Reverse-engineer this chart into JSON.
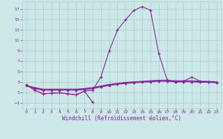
{
  "xlabel": "Windchill (Refroidissement éolien,°C)",
  "bg_color": "#cce8e8",
  "grid_color": "#aacccc",
  "line_color": "#882299",
  "xlim": [
    -0.5,
    23.5
  ],
  "ylim": [
    -2.0,
    18.5
  ],
  "xticks": [
    0,
    1,
    2,
    3,
    4,
    5,
    6,
    7,
    8,
    9,
    10,
    11,
    12,
    13,
    14,
    15,
    16,
    17,
    18,
    19,
    20,
    21,
    22,
    23
  ],
  "yticks": [
    -1,
    1,
    3,
    5,
    7,
    9,
    11,
    13,
    15,
    17
  ],
  "curve_main_x": [
    0,
    1,
    2,
    3,
    4,
    5,
    6,
    7,
    8,
    9,
    10,
    11,
    12,
    13,
    14,
    15,
    16,
    17,
    18,
    19,
    20,
    21,
    22,
    23
  ],
  "curve_main_y": [
    2.5,
    1.5,
    0.8,
    0.9,
    1.0,
    0.8,
    0.6,
    1.3,
    1.5,
    4.0,
    9.0,
    13.0,
    15.0,
    16.8,
    17.5,
    16.8,
    8.5,
    3.5,
    3.0,
    3.2,
    4.0,
    3.2,
    3.0,
    3.0
  ],
  "curve_dip_x": [
    0,
    1,
    2,
    3,
    4,
    5,
    6,
    7,
    8
  ],
  "curve_dip_y": [
    2.5,
    1.5,
    0.8,
    0.9,
    1.0,
    0.8,
    0.6,
    1.3,
    -0.8
  ],
  "curve_flat1_x": [
    0,
    1,
    2,
    3,
    4,
    5,
    6,
    7,
    8,
    9,
    10,
    11,
    12,
    13,
    14,
    15,
    16,
    17,
    18,
    19,
    20,
    21,
    22,
    23
  ],
  "curve_flat1_y": [
    2.4,
    1.8,
    1.5,
    1.5,
    1.5,
    1.5,
    1.5,
    1.6,
    1.8,
    2.1,
    2.4,
    2.6,
    2.8,
    2.9,
    3.0,
    3.1,
    3.2,
    3.2,
    3.1,
    3.1,
    3.1,
    3.0,
    3.0,
    2.9
  ],
  "curve_flat2_x": [
    0,
    1,
    2,
    3,
    4,
    5,
    6,
    7,
    8,
    9,
    10,
    11,
    12,
    13,
    14,
    15,
    16,
    17,
    18,
    19,
    20,
    21,
    22,
    23
  ],
  "curve_flat2_y": [
    2.4,
    1.9,
    1.6,
    1.6,
    1.6,
    1.6,
    1.6,
    1.7,
    1.9,
    2.2,
    2.5,
    2.7,
    2.9,
    3.0,
    3.1,
    3.2,
    3.3,
    3.3,
    3.2,
    3.2,
    3.2,
    3.1,
    3.1,
    3.0
  ],
  "curve_flat3_x": [
    0,
    1,
    2,
    3,
    4,
    5,
    6,
    7,
    8,
    9,
    10,
    11,
    12,
    13,
    14,
    15,
    16,
    17,
    18,
    19,
    20,
    21,
    22,
    23
  ],
  "curve_flat3_y": [
    2.4,
    2.0,
    1.7,
    1.7,
    1.7,
    1.7,
    1.7,
    1.8,
    2.0,
    2.3,
    2.6,
    2.8,
    3.0,
    3.1,
    3.2,
    3.3,
    3.4,
    3.4,
    3.3,
    3.3,
    3.3,
    3.2,
    3.2,
    3.1
  ]
}
